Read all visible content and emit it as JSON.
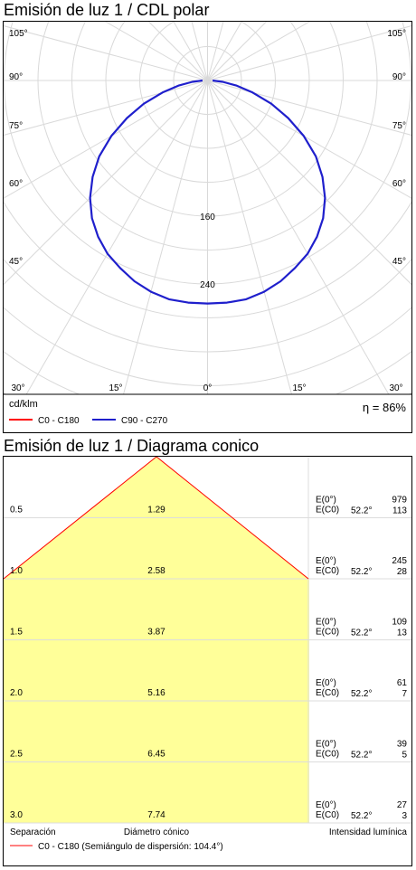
{
  "chart_data": [
    {
      "type": "polar",
      "title": "Emisión de luz 1 / CDL polar",
      "unit_label": "cd/klm",
      "efficiency_label": "η = 86%",
      "angle_labels_left": [
        "105°",
        "90°",
        "75°",
        "60°",
        "45°"
      ],
      "angle_labels_right": [
        "105°",
        "90°",
        "75°",
        "60°",
        "45°"
      ],
      "bottom_angle_labels": [
        "30°",
        "15°",
        "0°",
        "15°",
        "30°"
      ],
      "radial_labels": [
        "160",
        "240"
      ],
      "r_max": 320,
      "series": [
        {
          "name": "C0 - C180",
          "color": "#ff0000",
          "values": []
        },
        {
          "name": "C90 - C270",
          "color": "#1f1fcc",
          "angles": [
            0,
            5,
            10,
            15,
            20,
            25,
            30,
            35,
            40,
            45,
            50,
            55,
            60,
            65,
            70,
            75,
            80,
            85,
            90
          ],
          "values": [
            263,
            263,
            262,
            258,
            252,
            244,
            236,
            225,
            212,
            196,
            177,
            156,
            131,
            105,
            80,
            55,
            35,
            18,
            6
          ]
        }
      ]
    },
    {
      "type": "cone",
      "title": "Emisión de luz 1 / Diagrama conico",
      "col_labels": {
        "separation": "Separación",
        "diameter": "Diámetro cónico",
        "intensity": "Intensidad lumínica"
      },
      "legend": "C0 - C180 (Semiángulo de dispersión: 104.4°)",
      "legend_color": "#ff0000",
      "fill_color": "#ffff99",
      "rows": [
        {
          "h": "0.5",
          "d": "1.29",
          "e0_label": "E(0°)",
          "e0": "979",
          "ec0_label": "E(C0)",
          "angle": "52.2°",
          "ec0": "113"
        },
        {
          "h": "1.0",
          "d": "2.58",
          "e0_label": "E(0°)",
          "e0": "245",
          "ec0_label": "E(C0)",
          "angle": "52.2°",
          "ec0": "28"
        },
        {
          "h": "1.5",
          "d": "3.87",
          "e0_label": "E(0°)",
          "e0": "109",
          "ec0_label": "E(C0)",
          "angle": "52.2°",
          "ec0": "13"
        },
        {
          "h": "2.0",
          "d": "5.16",
          "e0_label": "E(0°)",
          "e0": "61",
          "ec0_label": "E(C0)",
          "angle": "52.2°",
          "ec0": "7"
        },
        {
          "h": "2.5",
          "d": "6.45",
          "e0_label": "E(0°)",
          "e0": "39",
          "ec0_label": "E(C0)",
          "angle": "52.2°",
          "ec0": "5"
        },
        {
          "h": "3.0",
          "d": "7.74",
          "e0_label": "E(0°)",
          "e0": "27",
          "ec0_label": "E(C0)",
          "angle": "52.2°",
          "ec0": "3"
        }
      ]
    }
  ]
}
